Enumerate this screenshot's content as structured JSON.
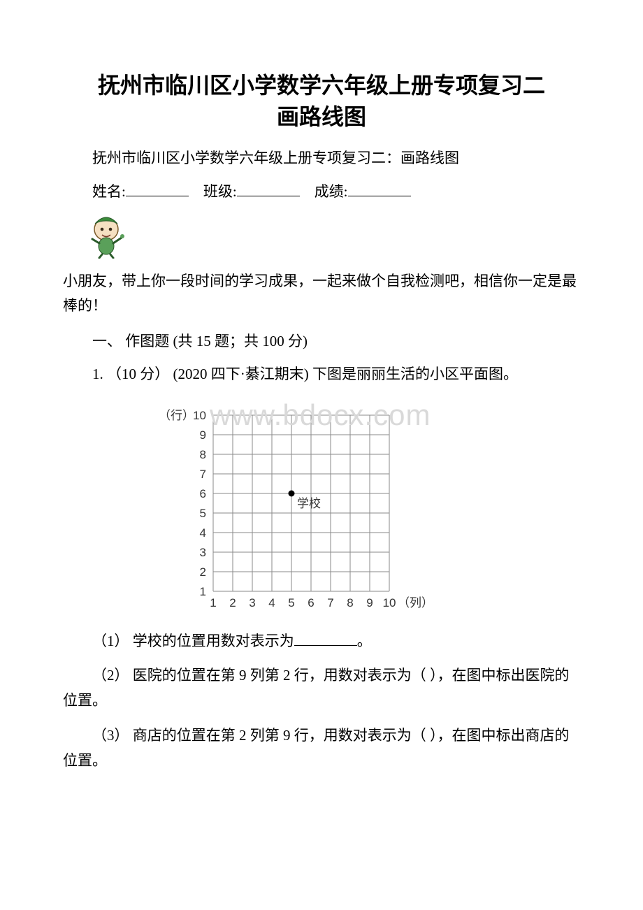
{
  "title_line1": "抚州市临川区小学数学六年级上册专项复习二",
  "title_line2": "画路线图",
  "subtitle": "抚州市临川区小学数学六年级上册专项复习二：画路线图",
  "form": {
    "name_label": "姓名:",
    "class_label": "班级:",
    "score_label": "成绩:"
  },
  "greeting": "  小朋友，带上你一段时间的学习成果，一起来做个自我检测吧，相信你一定是最棒的！",
  "section_heading": "一、 作图题 (共 15 题；共 100 分)",
  "q1_stem": "1. （10 分） (2020 四下·綦江期末) 下图是丽丽生活的小区平面图。",
  "chart": {
    "type": "grid",
    "y_axis_label": "（行）",
    "x_axis_label": "（列）",
    "x_ticks": [
      1,
      2,
      3,
      4,
      5,
      6,
      7,
      8,
      9,
      10
    ],
    "y_ticks": [
      1,
      2,
      3,
      4,
      5,
      6,
      7,
      8,
      9,
      10
    ],
    "cell_size": 28,
    "grid_start_x": 95,
    "grid_start_y": 30,
    "grid_cols": 9,
    "grid_rows": 9,
    "line_color": "#8a8a8a",
    "text_color": "#333333",
    "font_size": 17,
    "point": {
      "col": 5,
      "row": 6,
      "label": "学校"
    },
    "background": "#ffffff"
  },
  "watermark_text": "www.bdocx.com",
  "sub_questions": {
    "sq1": "（1） 学校的位置用数对表示为________。",
    "sq2": "（2） 医院的位置在第 9 列第 2 行，用数对表示为（ ），在图中标出医院的位置。",
    "sq3": "（3） 商店的位置在第 2 列第 9 行，用数对表示为（ ），在图中标出商店的位置。"
  }
}
